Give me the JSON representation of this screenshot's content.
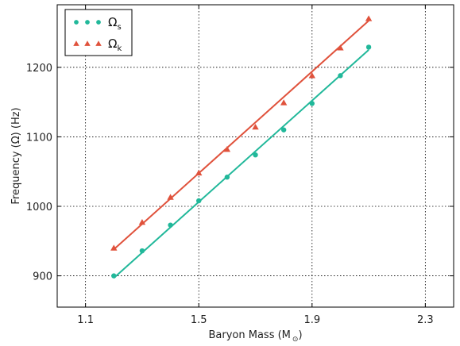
{
  "chart_data": {
    "type": "scatter",
    "xlabel": "Baryon Mass (M",
    "xlabel_subscript": "⊙",
    "xlabel_close": ")",
    "ylabel": "Frequency (Ω) (Hz)",
    "xlim": [
      1.0,
      2.4
    ],
    "ylim": [
      855,
      1290
    ],
    "xticks": [
      1.1,
      1.5,
      1.9,
      2.3
    ],
    "xtick_labels": [
      "1.1",
      "1.5",
      "1.9",
      "2.3"
    ],
    "yticks": [
      900,
      1000,
      1100,
      1200
    ],
    "ytick_labels": [
      "900",
      "1000",
      "1100",
      "1200"
    ],
    "grid": true,
    "legend_position": "top-left",
    "series": [
      {
        "name": "Ω",
        "subscript": "s",
        "marker": "circle",
        "color": "#21b89a",
        "x": [
          1.2,
          1.3,
          1.4,
          1.5,
          1.6,
          1.7,
          1.8,
          1.9,
          2.0,
          2.1
        ],
        "y": [
          900,
          936,
          973,
          1008,
          1042,
          1074,
          1110,
          1148,
          1188,
          1229
        ],
        "fit": [
          [
            1.2,
            897
          ],
          [
            2.1,
            1225
          ]
        ]
      },
      {
        "name": "Ω",
        "subscript": "k",
        "marker": "triangle",
        "color": "#e0523c",
        "x": [
          1.2,
          1.3,
          1.4,
          1.5,
          1.6,
          1.7,
          1.8,
          1.9,
          2.0,
          2.1
        ],
        "y": [
          940,
          977,
          1013,
          1048,
          1082,
          1114,
          1149,
          1188,
          1228,
          1270
        ],
        "fit": [
          [
            1.2,
            938
          ],
          [
            2.1,
            1267
          ]
        ]
      }
    ]
  }
}
